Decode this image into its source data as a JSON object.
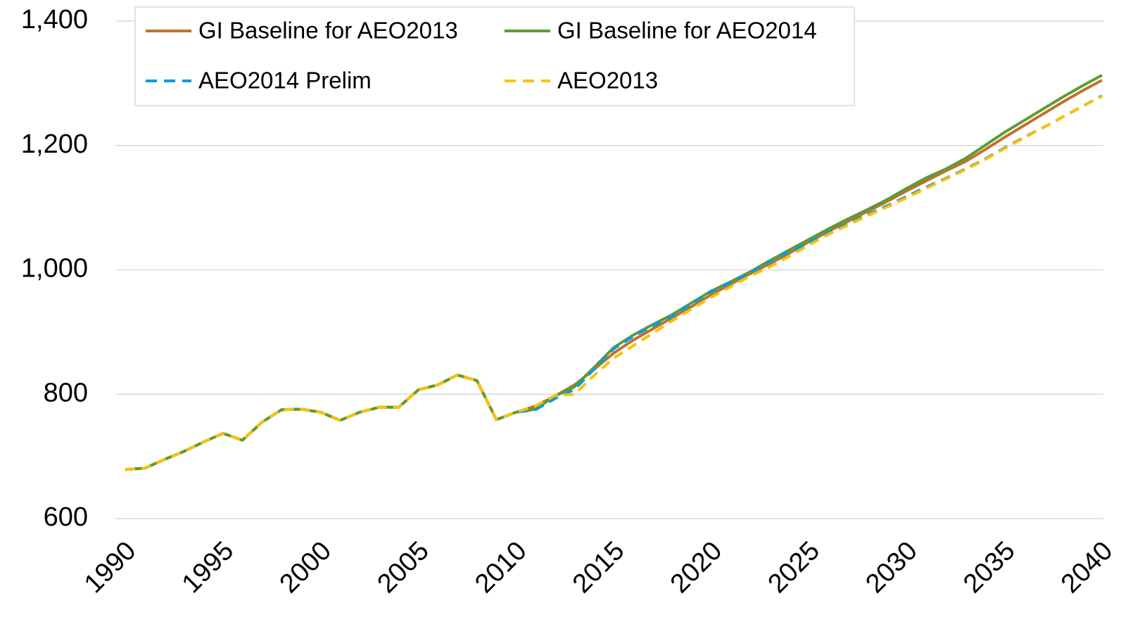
{
  "chart_data": {
    "type": "line",
    "x": [
      1990,
      1991,
      1992,
      1993,
      1994,
      1995,
      1996,
      1997,
      1998,
      1999,
      2000,
      2001,
      2002,
      2003,
      2004,
      2005,
      2006,
      2007,
      2008,
      2009,
      2010,
      2011,
      2012,
      2013,
      2014,
      2015,
      2016,
      2017,
      2018,
      2019,
      2020,
      2021,
      2022,
      2023,
      2024,
      2025,
      2026,
      2027,
      2028,
      2029,
      2030,
      2031,
      2032,
      2033,
      2034,
      2035,
      2036,
      2037,
      2038,
      2039,
      2040
    ],
    "series": [
      {
        "name": "GI Baseline for AEO2013",
        "color": "#c0712f",
        "dash": false,
        "values": [
          679,
          681,
          695,
          708,
          723,
          737,
          726,
          755,
          775,
          776,
          771,
          758,
          771,
          779,
          779,
          807,
          815,
          831,
          822,
          759,
          771,
          781,
          797,
          815,
          840,
          866,
          887,
          905,
          923,
          941,
          960,
          977,
          994,
          1010,
          1027,
          1045,
          1062,
          1078,
          1094,
          1110,
          1127,
          1143,
          1159,
          1174,
          1193,
          1213,
          1232,
          1251,
          1270,
          1288,
          1305
        ]
      },
      {
        "name": "GI Baseline for AEO2014",
        "color": "#5d9c32",
        "dash": false,
        "values": [
          679,
          681,
          695,
          708,
          723,
          737,
          726,
          755,
          775,
          776,
          771,
          758,
          771,
          779,
          779,
          807,
          815,
          831,
          822,
          759,
          771,
          776,
          797,
          812,
          843,
          875,
          895,
          912,
          928,
          947,
          966,
          981,
          997,
          1015,
          1032,
          1049,
          1066,
          1082,
          1097,
          1113,
          1131,
          1148,
          1162,
          1179,
          1200,
          1221,
          1240,
          1259,
          1278,
          1296,
          1313
        ]
      },
      {
        "name": "AEO2014 Prelim",
        "color": "#0f9bd7",
        "dash": true,
        "values": [
          679,
          681,
          695,
          708,
          723,
          737,
          726,
          755,
          775,
          776,
          771,
          758,
          771,
          779,
          779,
          807,
          815,
          831,
          822,
          759,
          771,
          775,
          793,
          808,
          840,
          873,
          893,
          910,
          926,
          945,
          965,
          980,
          996,
          1013,
          1029,
          1044,
          1060,
          1074,
          1089,
          1103,
          1118,
          1133,
          1147,
          1162,
          1178,
          1196,
          1213,
          1229,
          1246,
          1263,
          1280
        ]
      },
      {
        "name": "AEO2013",
        "color": "#ffc000",
        "dash": true,
        "values": [
          679,
          681,
          695,
          708,
          723,
          737,
          726,
          755,
          775,
          776,
          771,
          758,
          771,
          779,
          779,
          807,
          815,
          831,
          822,
          759,
          771,
          781,
          798,
          800,
          830,
          858,
          878,
          898,
          918,
          937,
          956,
          973,
          990,
          1005,
          1022,
          1040,
          1057,
          1072,
          1087,
          1101,
          1116,
          1131,
          1146,
          1161,
          1177,
          1195,
          1212,
          1229,
          1246,
          1263,
          1279
        ]
      }
    ],
    "xlim": [
      1990,
      2040
    ],
    "xticks": [
      1990,
      1995,
      2000,
      2005,
      2010,
      2015,
      2020,
      2025,
      2030,
      2035,
      2040
    ],
    "ylim": [
      600,
      1400
    ],
    "yticks": [
      600,
      {
        "value": 800,
        "label": "800"
      },
      {
        "value": 1000,
        "label": "1,000"
      },
      {
        "value": 1200,
        "label": "1,200"
      },
      {
        "value": 1400,
        "label": "1,400"
      }
    ],
    "grid": true
  }
}
